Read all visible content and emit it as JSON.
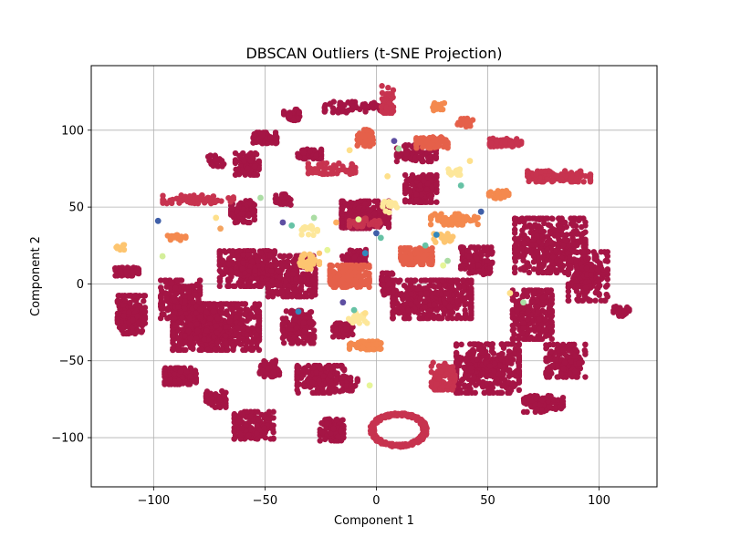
{
  "chart_data": {
    "type": "scatter",
    "title": "DBSCAN Outliers (t-SNE Projection)",
    "xlabel": "Component 1",
    "ylabel": "Component 2",
    "xlim": [
      -128,
      126
    ],
    "ylim": [
      -132,
      142
    ],
    "xticks": [
      -100,
      -50,
      0,
      50,
      100
    ],
    "yticks": [
      -100,
      -50,
      0,
      50,
      100
    ],
    "xtick_labels": [
      "−100",
      "−50",
      "0",
      "50",
      "100"
    ],
    "ytick_labels": [
      "−100",
      "−50",
      "0",
      "50",
      "100"
    ],
    "grid": true,
    "legend": "none",
    "colormap": [
      "#9e0142",
      "#d53e4f",
      "#f46d43",
      "#fdae61",
      "#fee08b",
      "#e6f598",
      "#abdda4",
      "#66c2a5",
      "#3288bd",
      "#5e4fa2"
    ],
    "clusters": [
      {
        "color": "#a51545",
        "cx": -72,
        "cy": -28,
        "rx": 22,
        "ry": 17,
        "n": 700
      },
      {
        "color": "#a51545",
        "cx": -58,
        "cy": 10,
        "rx": 14,
        "ry": 13,
        "n": 320
      },
      {
        "color": "#a51545",
        "cx": -88,
        "cy": -10,
        "rx": 10,
        "ry": 14,
        "n": 200
      },
      {
        "color": "#a51545",
        "cx": -110,
        "cy": -20,
        "rx": 7,
        "ry": 14,
        "n": 200
      },
      {
        "color": "#a51545",
        "cx": -112,
        "cy": 8,
        "rx": 6,
        "ry": 3,
        "n": 80
      },
      {
        "color": "#a51545",
        "cx": -88,
        "cy": -60,
        "rx": 8,
        "ry": 6,
        "n": 140
      },
      {
        "color": "#a51545",
        "cx": -72,
        "cy": -75,
        "rx": 5,
        "ry": 6,
        "n": 70
      },
      {
        "color": "#a51545",
        "cx": -55,
        "cy": -92,
        "rx": 10,
        "ry": 10,
        "n": 160
      },
      {
        "color": "#a51545",
        "cx": -48,
        "cy": -55,
        "rx": 5,
        "ry": 6,
        "n": 60
      },
      {
        "color": "#a51545",
        "cx": -38,
        "cy": 5,
        "rx": 12,
        "ry": 15,
        "n": 260
      },
      {
        "color": "#a51545",
        "cx": -35,
        "cy": -28,
        "rx": 8,
        "ry": 12,
        "n": 160
      },
      {
        "color": "#a51545",
        "cx": -25,
        "cy": -62,
        "rx": 12,
        "ry": 10,
        "n": 200
      },
      {
        "color": "#a51545",
        "cx": -15,
        "cy": -30,
        "rx": 5,
        "ry": 5,
        "n": 60
      },
      {
        "color": "#a51545",
        "cx": -12,
        "cy": -65,
        "rx": 4,
        "ry": 5,
        "n": 40
      },
      {
        "color": "#a51545",
        "cx": -20,
        "cy": -95,
        "rx": 6,
        "ry": 8,
        "n": 80
      },
      {
        "color": "#a51545",
        "cx": -30,
        "cy": 85,
        "rx": 6,
        "ry": 4,
        "n": 50
      },
      {
        "color": "#a51545",
        "cx": -38,
        "cy": 110,
        "rx": 4,
        "ry": 4,
        "n": 40
      },
      {
        "color": "#a51545",
        "cx": -50,
        "cy": 95,
        "rx": 6,
        "ry": 4,
        "n": 50
      },
      {
        "color": "#a51545",
        "cx": -58,
        "cy": 78,
        "rx": 6,
        "ry": 8,
        "n": 80
      },
      {
        "color": "#a51545",
        "cx": -72,
        "cy": 80,
        "rx": 4,
        "ry": 4,
        "n": 30
      },
      {
        "color": "#a51545",
        "cx": -60,
        "cy": 47,
        "rx": 6,
        "ry": 8,
        "n": 90
      },
      {
        "color": "#a51545",
        "cx": -42,
        "cy": 55,
        "rx": 4,
        "ry": 4,
        "n": 40
      },
      {
        "color": "#a51545",
        "cx": -5,
        "cy": 45,
        "rx": 12,
        "ry": 10,
        "n": 220
      },
      {
        "color": "#a51545",
        "cx": 20,
        "cy": 62,
        "rx": 8,
        "ry": 10,
        "n": 160
      },
      {
        "color": "#a51545",
        "cx": 18,
        "cy": 85,
        "rx": 10,
        "ry": 6,
        "n": 90
      },
      {
        "color": "#a51545",
        "cx": -10,
        "cy": 115,
        "rx": 15,
        "ry": 4,
        "n": 70
      },
      {
        "color": "#a51545",
        "cx": 25,
        "cy": -10,
        "rx": 20,
        "ry": 14,
        "n": 420
      },
      {
        "color": "#a51545",
        "cx": 45,
        "cy": 15,
        "rx": 8,
        "ry": 10,
        "n": 120
      },
      {
        "color": "#a51545",
        "cx": 50,
        "cy": -55,
        "rx": 16,
        "ry": 18,
        "n": 360
      },
      {
        "color": "#a51545",
        "cx": 70,
        "cy": -20,
        "rx": 10,
        "ry": 18,
        "n": 250
      },
      {
        "color": "#a51545",
        "cx": 78,
        "cy": 25,
        "rx": 18,
        "ry": 20,
        "n": 380
      },
      {
        "color": "#a51545",
        "cx": 95,
        "cy": 5,
        "rx": 10,
        "ry": 18,
        "n": 200
      },
      {
        "color": "#a51545",
        "cx": 85,
        "cy": -50,
        "rx": 10,
        "ry": 12,
        "n": 160
      },
      {
        "color": "#a51545",
        "cx": 75,
        "cy": -78,
        "rx": 10,
        "ry": 6,
        "n": 90
      },
      {
        "color": "#a51545",
        "cx": 110,
        "cy": -18,
        "rx": 4,
        "ry": 4,
        "n": 30
      },
      {
        "color": "#a51545",
        "cx": 5,
        "cy": 0,
        "rx": 3,
        "ry": 8,
        "n": 40
      },
      {
        "color": "#a51545",
        "cx": -10,
        "cy": 18,
        "rx": 6,
        "ry": 5,
        "n": 60
      },
      {
        "color": "#c7334f",
        "cx": 10,
        "cy": -95,
        "rx": 14,
        "ry": 12,
        "n": 260,
        "ring": true
      },
      {
        "color": "#c7334f",
        "cx": 82,
        "cy": 70,
        "rx": 16,
        "ry": 4,
        "n": 120
      },
      {
        "color": "#c7334f",
        "cx": 58,
        "cy": 92,
        "rx": 8,
        "ry": 3,
        "n": 60
      },
      {
        "color": "#c7334f",
        "cx": -80,
        "cy": 55,
        "rx": 18,
        "ry": 3,
        "n": 70
      },
      {
        "color": "#c7334f",
        "cx": -20,
        "cy": 75,
        "rx": 12,
        "ry": 4,
        "n": 60
      },
      {
        "color": "#c7334f",
        "cx": 30,
        "cy": -60,
        "rx": 6,
        "ry": 10,
        "n": 80
      },
      {
        "color": "#c7334f",
        "cx": 5,
        "cy": 120,
        "rx": 3,
        "ry": 10,
        "n": 40
      },
      {
        "color": "#c7334f",
        "cx": -5,
        "cy": 40,
        "rx": 8,
        "ry": 3,
        "n": 30
      },
      {
        "color": "#e5604a",
        "cx": -12,
        "cy": 5,
        "rx": 10,
        "ry": 8,
        "n": 200
      },
      {
        "color": "#e5604a",
        "cx": 18,
        "cy": 18,
        "rx": 8,
        "ry": 6,
        "n": 150
      },
      {
        "color": "#e5604a",
        "cx": 25,
        "cy": 92,
        "rx": 8,
        "ry": 4,
        "n": 100
      },
      {
        "color": "#e5604a",
        "cx": -5,
        "cy": 95,
        "rx": 4,
        "ry": 6,
        "n": 50
      },
      {
        "color": "#e5604a",
        "cx": 40,
        "cy": 105,
        "rx": 4,
        "ry": 3,
        "n": 30
      },
      {
        "color": "#f4894e",
        "cx": -5,
        "cy": -40,
        "rx": 8,
        "ry": 3,
        "n": 60
      },
      {
        "color": "#f4894e",
        "cx": 35,
        "cy": 42,
        "rx": 12,
        "ry": 4,
        "n": 70
      },
      {
        "color": "#f4894e",
        "cx": 55,
        "cy": 58,
        "rx": 5,
        "ry": 3,
        "n": 30
      },
      {
        "color": "#f4894e",
        "cx": 28,
        "cy": 115,
        "rx": 3,
        "ry": 3,
        "n": 20
      },
      {
        "color": "#f4894e",
        "cx": -90,
        "cy": 30,
        "rx": 5,
        "ry": 2,
        "n": 20
      },
      {
        "color": "#fdc570",
        "cx": -30,
        "cy": 15,
        "rx": 5,
        "ry": 6,
        "n": 30
      },
      {
        "color": "#fdc570",
        "cx": 30,
        "cy": 30,
        "rx": 5,
        "ry": 4,
        "n": 25
      },
      {
        "color": "#fdc570",
        "cx": -115,
        "cy": 24,
        "rx": 2,
        "ry": 2,
        "n": 10
      },
      {
        "color": "#fde79a",
        "cx": -8,
        "cy": -22,
        "rx": 5,
        "ry": 4,
        "n": 20
      },
      {
        "color": "#fde79a",
        "cx": 35,
        "cy": 72,
        "rx": 3,
        "ry": 3,
        "n": 15
      },
      {
        "color": "#fde79a",
        "cx": -30,
        "cy": 35,
        "rx": 4,
        "ry": 4,
        "n": 15
      },
      {
        "color": "#fde79a",
        "cx": 5,
        "cy": 50,
        "rx": 6,
        "ry": 4,
        "n": 15
      }
    ],
    "outliers": [
      {
        "x": -98,
        "y": 41,
        "color": "#3f5fa8"
      },
      {
        "x": -96,
        "y": 18,
        "color": "#d4ee9a"
      },
      {
        "x": -72,
        "y": 43,
        "color": "#fee08b"
      },
      {
        "x": -70,
        "y": 36,
        "color": "#f4a460"
      },
      {
        "x": -52,
        "y": 56,
        "color": "#abdda4"
      },
      {
        "x": -42,
        "y": 40,
        "color": "#5e4fa2"
      },
      {
        "x": -38,
        "y": 38,
        "color": "#66c2a5"
      },
      {
        "x": -35,
        "y": -18,
        "color": "#3288bd"
      },
      {
        "x": -28,
        "y": 43,
        "color": "#abdda4"
      },
      {
        "x": -22,
        "y": 22,
        "color": "#e6f598"
      },
      {
        "x": -18,
        "y": 40,
        "color": "#fdae61"
      },
      {
        "x": -15,
        "y": -12,
        "color": "#5e4fa2"
      },
      {
        "x": -12,
        "y": 87,
        "color": "#fee08b"
      },
      {
        "x": -10,
        "y": -17,
        "color": "#66c2a5"
      },
      {
        "x": -8,
        "y": 42,
        "color": "#e6f598"
      },
      {
        "x": -5,
        "y": 20,
        "color": "#3288bd"
      },
      {
        "x": -3,
        "y": -66,
        "color": "#e6f598"
      },
      {
        "x": 0,
        "y": 33,
        "color": "#3f5fa8"
      },
      {
        "x": 2,
        "y": 30,
        "color": "#66c2a5"
      },
      {
        "x": 5,
        "y": 70,
        "color": "#fee08b"
      },
      {
        "x": 8,
        "y": 93,
        "color": "#5e4fa2"
      },
      {
        "x": 10,
        "y": 88,
        "color": "#abdda4"
      },
      {
        "x": 22,
        "y": 25,
        "color": "#66c2a5"
      },
      {
        "x": 27,
        "y": 32,
        "color": "#3288bd"
      },
      {
        "x": 30,
        "y": 12,
        "color": "#e6f598"
      },
      {
        "x": 32,
        "y": 15,
        "color": "#abdda4"
      },
      {
        "x": 38,
        "y": 64,
        "color": "#66c2a5"
      },
      {
        "x": 42,
        "y": 80,
        "color": "#fee08b"
      },
      {
        "x": 47,
        "y": 47,
        "color": "#3f5fa8"
      },
      {
        "x": 60,
        "y": -6,
        "color": "#fee08b"
      },
      {
        "x": 66,
        "y": -12,
        "color": "#abdda4"
      },
      {
        "x": -5,
        "y": -19,
        "color": "#fee08b"
      }
    ]
  }
}
